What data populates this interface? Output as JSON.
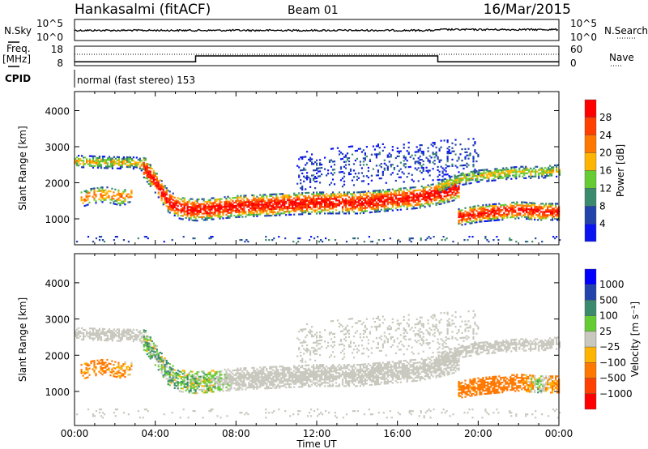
{
  "header": {
    "station": "Hankasalmi (fitACF)",
    "beam": "Beam 01",
    "date": "16/Mar/2015"
  },
  "nsky_panel": {
    "left_label": "N.Sky",
    "right_label": "N.Search",
    "left_ticks": [
      "10^5",
      "10^0"
    ],
    "right_ticks": [
      "10^5",
      "10^0"
    ]
  },
  "freq_panel": {
    "left_label_1": "Freq.",
    "left_label_2": "[MHz]",
    "right_label": "Nave",
    "left_ticks": [
      "18",
      "8"
    ],
    "right_ticks": [
      "60",
      "0"
    ],
    "freq_steps": [
      {
        "from": 0,
        "to": 6,
        "value": 10
      },
      {
        "from": 6,
        "to": 18,
        "value": 13
      },
      {
        "from": 18,
        "to": 24,
        "value": 10
      }
    ],
    "nave_value": 35,
    "freq_range": [
      8,
      18
    ],
    "nave_range": [
      0,
      60
    ]
  },
  "cpid": {
    "label": "CPID",
    "text": "normal (fast stereo) 153"
  },
  "chart_data": [
    {
      "type": "heatmap",
      "title": "Power",
      "ylabel": "Slant Range [km]",
      "xlabel": "Time UT",
      "xlim": [
        0,
        24
      ],
      "ylim": [
        281,
        4528
      ],
      "yticks": [
        "4000",
        "3000",
        "2000",
        "1000"
      ],
      "yticks_values": [
        4000,
        3000,
        2000,
        1000
      ],
      "xticks": [
        "00:00",
        "04:00",
        "08:00",
        "12:00",
        "16:00",
        "20:00",
        "00:00"
      ],
      "colorbar": {
        "label": "Power [dB]",
        "ticks": [
          "28",
          "24",
          "20",
          "16",
          "12",
          "8",
          "4"
        ],
        "colors": [
          "#ff0000",
          "#ff4000",
          "#ff7800",
          "#ffb400",
          "#66cc33",
          "#3c8a6e",
          "#2244aa",
          "#0a14f0"
        ]
      }
    },
    {
      "type": "heatmap",
      "title": "Velocity",
      "ylabel": "Slant Range [km]",
      "xlabel": "Time UT",
      "xlim": [
        0,
        24
      ],
      "ylim": [
        60,
        4803
      ],
      "yticks": [
        "4000",
        "3000",
        "2000",
        "1000"
      ],
      "yticks_values": [
        4000,
        3000,
        2000,
        1000
      ],
      "xticks": [
        "00:00",
        "04:00",
        "08:00",
        "12:00",
        "16:00",
        "20:00",
        "00:00"
      ],
      "colorbar": {
        "label": "Velocity [m s⁻¹]",
        "ticks": [
          "1000",
          "500",
          "100",
          "25",
          "−25",
          "−100",
          "−500",
          "−1000"
        ],
        "colors": [
          "#0000ff",
          "#2244aa",
          "#3c8a6e",
          "#66cc33",
          "#c8c8be",
          "#ffb400",
          "#ff7800",
          "#ff4000",
          "#ff0000"
        ]
      }
    }
  ],
  "echo_regions": [
    {
      "name": "early-upper-band",
      "t": [
        0,
        1,
        2,
        3,
        3.6
      ],
      "center_km": [
        2600,
        2580,
        2560,
        2550,
        2450
      ],
      "halfwidth_km": 160,
      "peak_db": 18,
      "velocity": [
        0,
        0,
        0,
        0,
        0
      ],
      "density": 0.85
    },
    {
      "name": "early-blob",
      "t": [
        0.3,
        0.8,
        1.5,
        2.2,
        2.8
      ],
      "center_km": [
        1550,
        1650,
        1700,
        1600,
        1650
      ],
      "halfwidth_km": 220,
      "peak_db": 22,
      "velocity": [
        -150,
        -150,
        -200,
        -100,
        -100
      ],
      "density": 0.6
    },
    {
      "name": "main-band",
      "t": [
        3.4,
        4,
        4.6,
        5.2,
        6,
        8,
        10,
        12,
        14,
        16,
        17,
        18,
        19
      ],
      "center_km": [
        2450,
        2000,
        1500,
        1300,
        1250,
        1350,
        1400,
        1450,
        1450,
        1550,
        1600,
        1700,
        1850
      ],
      "halfwidth_km": 300,
      "peak_db": 30,
      "velocity": [
        60,
        60,
        60,
        50,
        40,
        0,
        0,
        0,
        0,
        0,
        0,
        0,
        0
      ],
      "density": 0.9
    },
    {
      "name": "late-upper-band",
      "t": [
        18,
        19,
        20,
        21,
        22,
        23,
        24
      ],
      "center_km": [
        1900,
        2100,
        2200,
        2250,
        2300,
        2300,
        2350
      ],
      "halfwidth_km": 170,
      "peak_db": 17,
      "velocity": [
        0,
        0,
        0,
        0,
        0,
        0,
        0
      ],
      "density": 0.85
    },
    {
      "name": "late-lower-band",
      "t": [
        19,
        20,
        21,
        22,
        23,
        24
      ],
      "center_km": [
        1050,
        1150,
        1200,
        1250,
        1200,
        1200
      ],
      "halfwidth_km": 230,
      "peak_db": 29,
      "velocity": [
        -150,
        -200,
        -300,
        -200,
        50,
        -200
      ],
      "density": 0.85
    },
    {
      "name": "upper-scatter",
      "t": [
        11,
        14,
        17,
        20
      ],
      "center_km": [
        2300,
        2500,
        2600,
        2700
      ],
      "halfwidth_km": 550,
      "peak_db": 6,
      "velocity": [
        0,
        0,
        0,
        0
      ],
      "density": 0.22
    },
    {
      "name": "near-range",
      "t": [
        0,
        24
      ],
      "center_km": [
        400,
        400
      ],
      "halfwidth_km": 120,
      "peak_db": 8,
      "velocity": [
        0,
        0
      ],
      "density": 0.12
    }
  ]
}
